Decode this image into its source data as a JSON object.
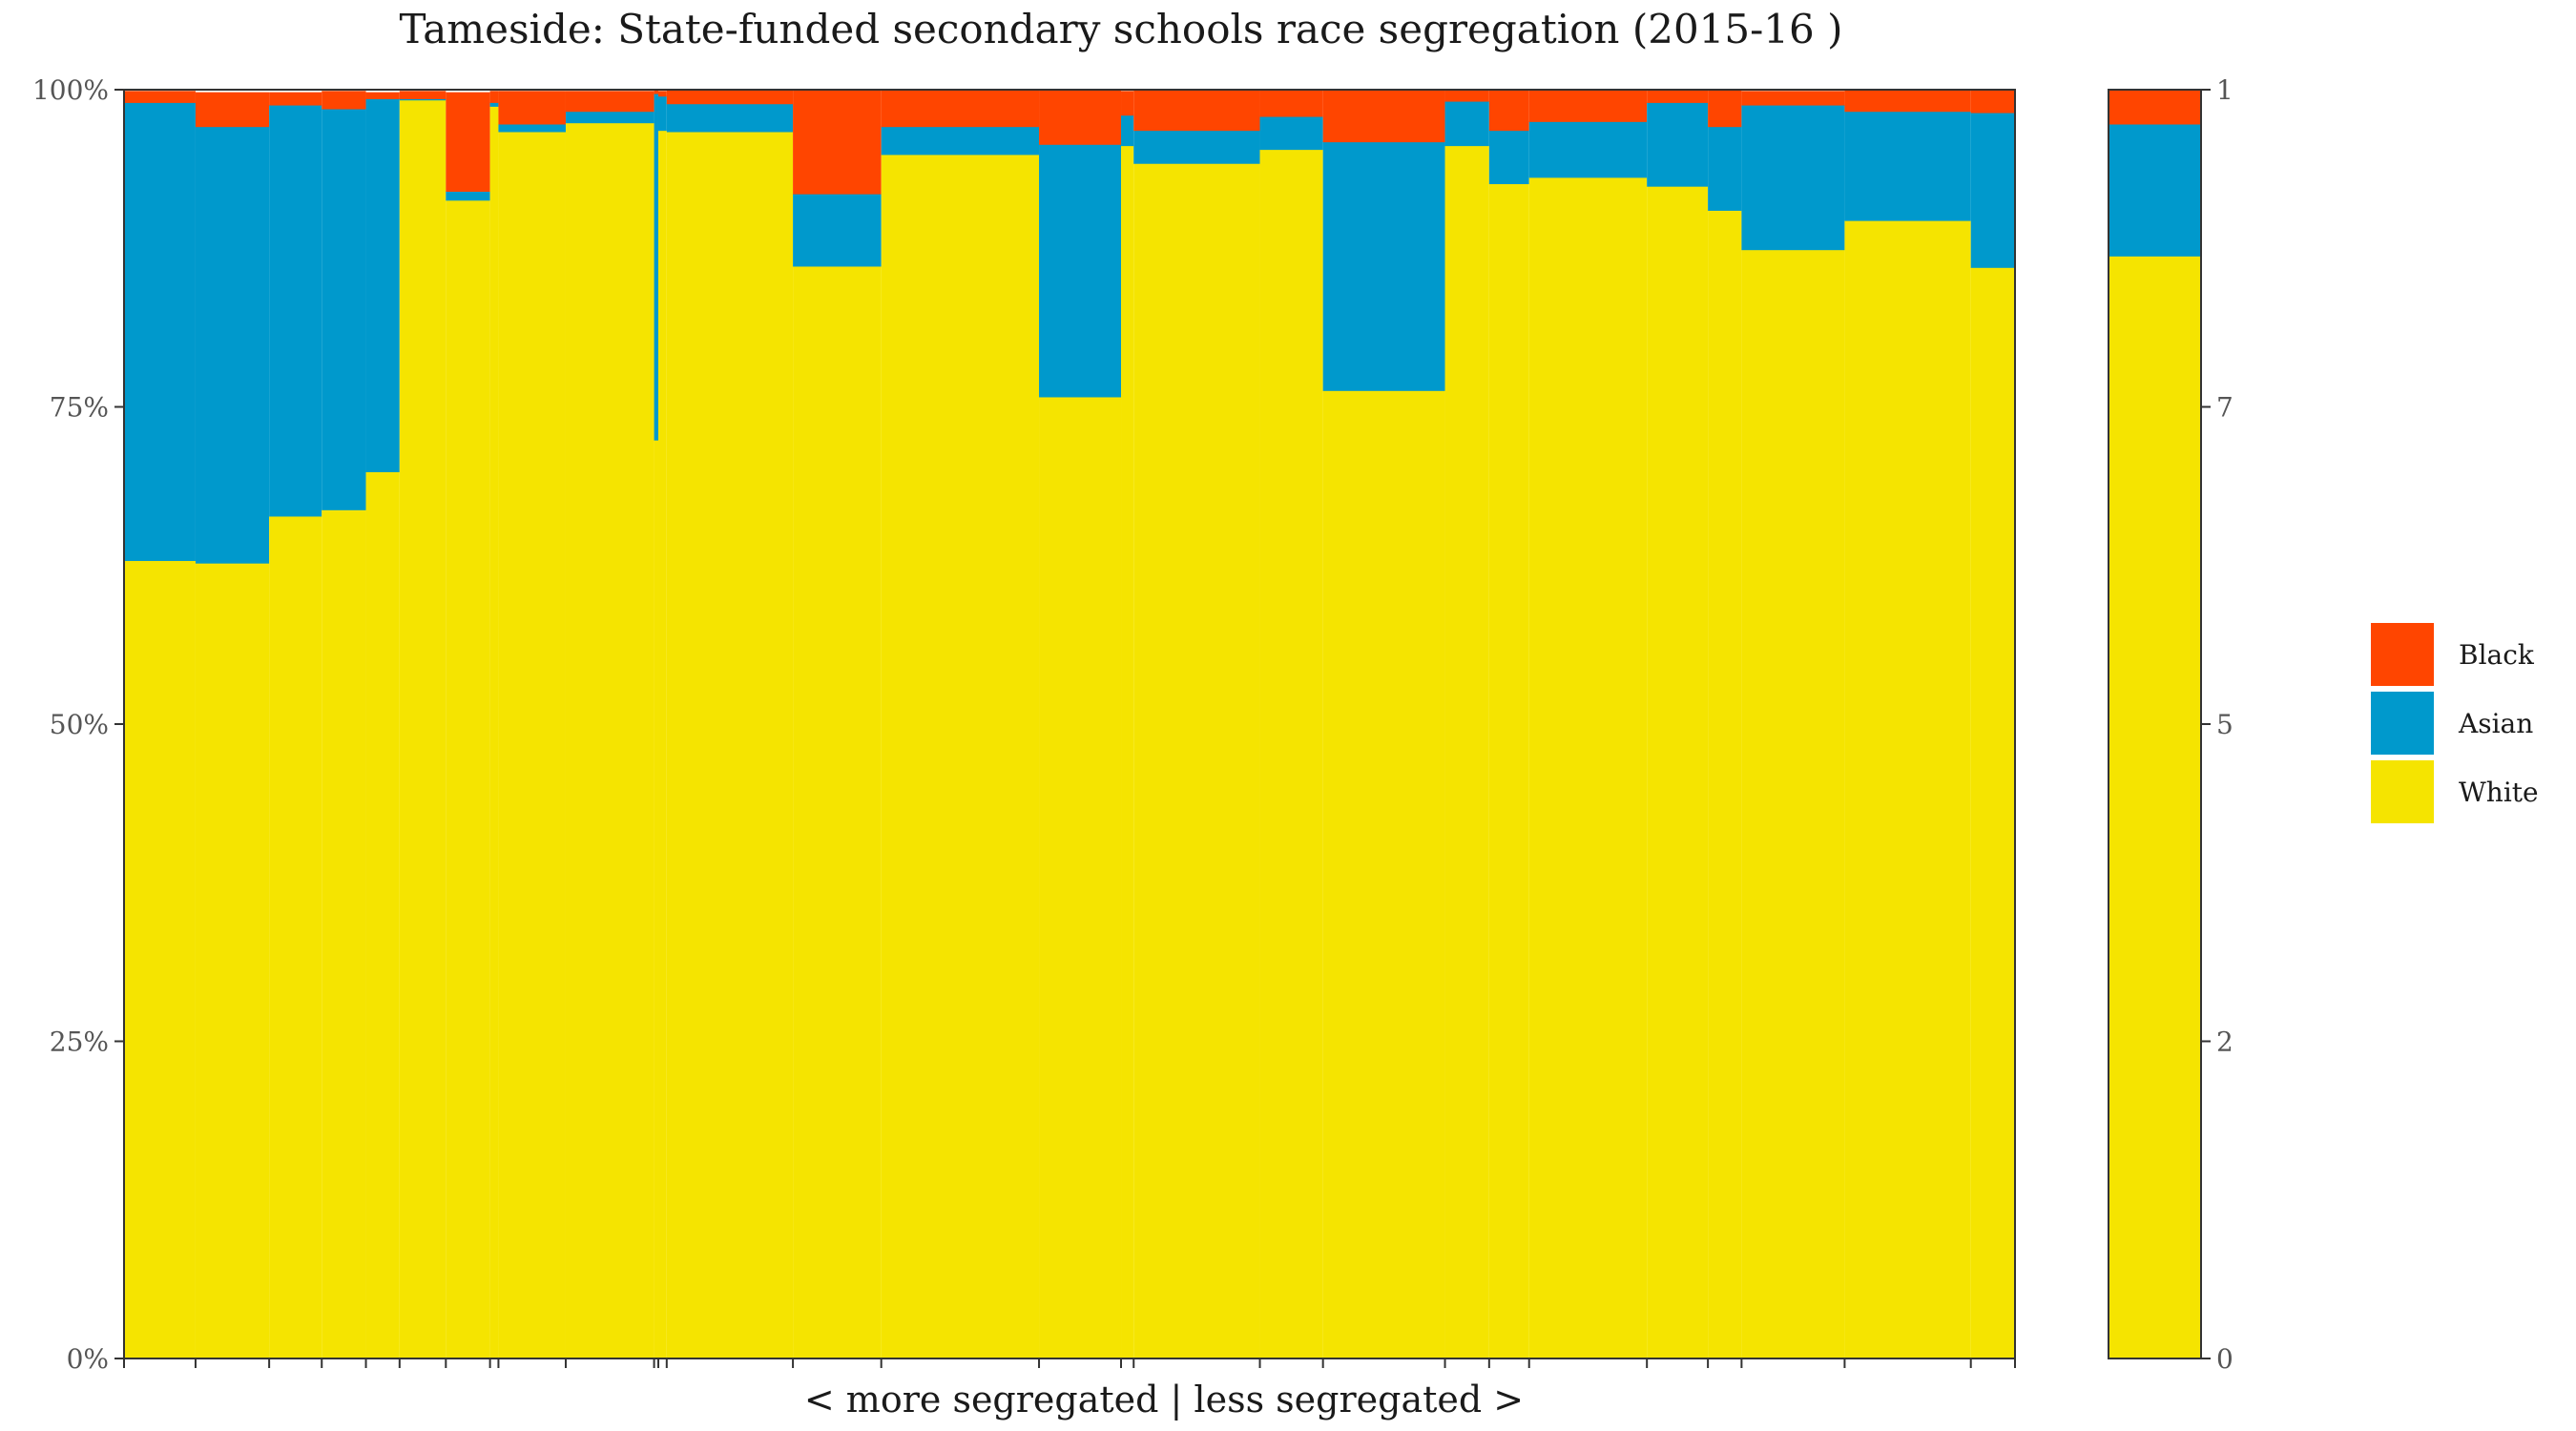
{
  "colors": {
    "Black": "#ff4500",
    "Asian": "#0099cc",
    "White": "#f5e400"
  },
  "legend": {
    "items": [
      {
        "name": "Black",
        "color": "#ff4500"
      },
      {
        "name": "Asian",
        "color": "#0099cc"
      },
      {
        "name": "White",
        "color": "#f5e400"
      }
    ]
  },
  "chart_data": {
    "type": "bar",
    "title": "Tameside: State-funded secondary schools race segregation (2015-16 )",
    "xlabel": "< more segregated | less segregated >",
    "ylabel": "",
    "ylim": [
      0,
      100
    ],
    "ytick_labels": [
      "0%",
      "25%",
      "50%",
      "75%",
      "100%"
    ],
    "stack_order_bottom_to_top": [
      "White",
      "Asian",
      "Black"
    ],
    "variable_width": true,
    "schools": [
      {
        "share": 3.4,
        "white": 62.9,
        "asian": 36.1,
        "black": 0.9
      },
      {
        "share": 3.5,
        "white": 62.7,
        "asian": 34.4,
        "black": 2.7
      },
      {
        "share": 2.5,
        "white": 66.4,
        "asian": 32.4,
        "black": 1.0
      },
      {
        "share": 2.1,
        "white": 66.9,
        "asian": 31.6,
        "black": 1.4
      },
      {
        "share": 1.6,
        "white": 69.9,
        "asian": 29.4,
        "black": 0.5
      },
      {
        "share": 2.2,
        "white": 99.2,
        "asian": 0.1,
        "black": 0.6
      },
      {
        "share": 2.1,
        "white": 91.3,
        "asian": 0.7,
        "black": 7.8
      },
      {
        "share": 0.4,
        "white": 98.7,
        "asian": 0.3,
        "black": 0.9
      },
      {
        "share": 3.2,
        "white": 96.7,
        "asian": 0.6,
        "black": 2.6
      },
      {
        "share": 4.2,
        "white": 97.4,
        "asian": 0.9,
        "black": 1.6
      },
      {
        "share": 0.2,
        "white": 72.4,
        "asian": 27.3,
        "black": 0.3
      },
      {
        "share": 0.4,
        "white": 96.8,
        "asian": 2.7,
        "black": 0.4
      },
      {
        "share": 6.0,
        "white": 96.7,
        "asian": 2.2,
        "black": 1.1
      },
      {
        "share": 4.2,
        "white": 86.1,
        "asian": 5.7,
        "black": 8.2
      },
      {
        "share": 7.5,
        "white": 94.9,
        "asian": 2.2,
        "black": 2.9
      },
      {
        "share": 3.9,
        "white": 75.8,
        "asian": 19.9,
        "black": 4.3
      },
      {
        "share": 0.6,
        "white": 95.6,
        "asian": 2.4,
        "black": 1.9
      },
      {
        "share": 6.0,
        "white": 94.2,
        "asian": 2.6,
        "black": 3.2
      },
      {
        "share": 3.0,
        "white": 95.3,
        "asian": 2.6,
        "black": 2.1
      },
      {
        "share": 5.8,
        "white": 76.3,
        "asian": 19.6,
        "black": 4.1
      },
      {
        "share": 2.1,
        "white": 95.6,
        "asian": 3.5,
        "black": 0.9
      },
      {
        "share": 1.9,
        "white": 92.6,
        "asian": 4.2,
        "black": 3.2
      },
      {
        "share": 5.6,
        "white": 93.1,
        "asian": 4.4,
        "black": 2.5
      },
      {
        "share": 2.9,
        "white": 92.4,
        "asian": 6.6,
        "black": 1.0
      },
      {
        "share": 1.6,
        "white": 90.5,
        "asian": 6.6,
        "black": 2.9
      },
      {
        "share": 4.9,
        "white": 87.4,
        "asian": 11.4,
        "black": 1.1
      },
      {
        "share": 6.0,
        "white": 89.7,
        "asian": 8.6,
        "black": 1.7
      },
      {
        "share": 2.1,
        "white": 86.0,
        "asian": 12.2,
        "black": 1.8
      }
    ],
    "overall": {
      "white": 86.9,
      "asian": 10.4,
      "black": 2.7
    }
  }
}
